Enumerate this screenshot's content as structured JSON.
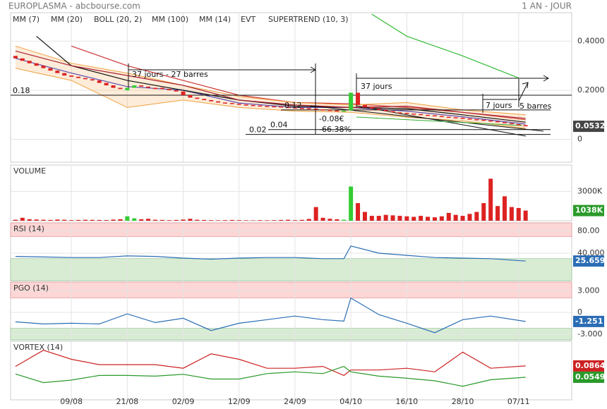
{
  "header": {
    "title": "EUROPLASMA - abcbourse.com",
    "period": "1 AN - JOUR"
  },
  "chart_data": [
    {
      "type": "candlestick",
      "xlim": [
        -0.7,
        79.6
      ],
      "xticks": [
        {
          "value": 8,
          "label": "09/08"
        },
        {
          "value": 16,
          "label": "21/08"
        },
        {
          "value": 24,
          "label": "02/09"
        },
        {
          "value": 32,
          "label": "12/09"
        },
        {
          "value": 40,
          "label": "24/09"
        },
        {
          "value": 48,
          "label": "04/10"
        },
        {
          "value": 56,
          "label": "16/10"
        },
        {
          "value": 64,
          "label": "28/10"
        },
        {
          "value": 72,
          "label": "07/11"
        }
      ],
      "ylim": [
        -0.093,
        0.516
      ],
      "yticks": [
        {
          "value": 0.4,
          "label": "0.4000"
        },
        {
          "value": 0.2,
          "label": "0.2000"
        },
        0
      ],
      "grid": true,
      "up_color": "#33cc33",
      "down_color": "#dd2222",
      "open": [
        0.34,
        0.33,
        0.32,
        0.31,
        0.3,
        0.29,
        0.28,
        0.27,
        0.26,
        0.255,
        0.25,
        0.245,
        0.24,
        0.23,
        0.22,
        0.21,
        0.2,
        0.21,
        0.22,
        0.215,
        0.21,
        0.21,
        0.205,
        0.2,
        0.195,
        0.18,
        0.17,
        0.165,
        0.16,
        0.155,
        0.15,
        0.148,
        0.145,
        0.142,
        0.14,
        0.138,
        0.136,
        0.135,
        0.134,
        0.132,
        0.13,
        0.128,
        0.127,
        0.125,
        0.122,
        0.12,
        0.118,
        0.116,
        0.118,
        0.19,
        0.14,
        0.13,
        0.125,
        0.12,
        0.115,
        0.11,
        0.108,
        0.105,
        0.103,
        0.1,
        0.098,
        0.095,
        0.092,
        0.09,
        0.088,
        0.085,
        0.082,
        0.08,
        0.077,
        0.074,
        0.07,
        0.066,
        0.062,
        0.058
      ],
      "close": [
        0.33,
        0.32,
        0.31,
        0.3,
        0.29,
        0.28,
        0.27,
        0.26,
        0.255,
        0.25,
        0.245,
        0.24,
        0.23,
        0.22,
        0.21,
        0.205,
        0.21,
        0.22,
        0.215,
        0.21,
        0.205,
        0.205,
        0.2,
        0.195,
        0.18,
        0.17,
        0.165,
        0.16,
        0.155,
        0.15,
        0.148,
        0.145,
        0.142,
        0.14,
        0.138,
        0.136,
        0.135,
        0.134,
        0.132,
        0.13,
        0.128,
        0.127,
        0.125,
        0.122,
        0.12,
        0.118,
        0.116,
        0.117,
        0.19,
        0.14,
        0.13,
        0.125,
        0.12,
        0.115,
        0.11,
        0.108,
        0.105,
        0.103,
        0.1,
        0.098,
        0.095,
        0.092,
        0.09,
        0.088,
        0.085,
        0.082,
        0.08,
        0.077,
        0.074,
        0.07,
        0.066,
        0.062,
        0.058,
        0.0532
      ],
      "series": [
        {
          "name": "MM (7)",
          "color": "#3333cc",
          "x": [
            0,
            8,
            16,
            24,
            32,
            40,
            48,
            56,
            64,
            73
          ],
          "values": [
            0.33,
            0.27,
            0.215,
            0.2,
            0.148,
            0.13,
            0.13,
            0.115,
            0.092,
            0.062
          ]
        },
        {
          "name": "MM (20)",
          "color": "#cc3333",
          "x": [
            8,
            16,
            24,
            32,
            40,
            48,
            56,
            64,
            73
          ],
          "values": [
            0.38,
            0.3,
            0.24,
            0.18,
            0.15,
            0.145,
            0.13,
            0.11,
            0.08
          ]
        },
        {
          "name": "BOLL (20, 2)",
          "color": "#f0a040",
          "x": [
            0,
            8,
            16,
            24,
            32,
            40,
            48,
            56,
            64,
            73
          ],
          "upper": [
            0.38,
            0.31,
            0.27,
            0.22,
            0.175,
            0.15,
            0.14,
            0.15,
            0.12,
            0.1
          ],
          "lower": [
            0.29,
            0.24,
            0.13,
            0.16,
            0.13,
            0.115,
            0.11,
            0.09,
            0.075,
            0.045
          ]
        },
        {
          "name": "MM (100)",
          "color": "#33bb33",
          "x": [
            51,
            56,
            64,
            72
          ],
          "values": [
            0.51,
            0.42,
            0.34,
            0.25
          ]
        },
        {
          "name": "MM (14)",
          "color": "#111111",
          "x": [
            3,
            8,
            16,
            24,
            32,
            40,
            48,
            56,
            64,
            73
          ],
          "values": [
            0.42,
            0.3,
            0.24,
            0.2,
            0.16,
            0.135,
            0.13,
            0.125,
            0.1,
            0.07
          ]
        },
        {
          "name": "EVT",
          "color": "#111111"
        },
        {
          "name": "SUPERTREND (10, 3)",
          "color": "#aa2233",
          "x": [
            0,
            8,
            16,
            24,
            32,
            40,
            48,
            56,
            64,
            73
          ],
          "values": [
            0.36,
            0.3,
            0.26,
            0.22,
            0.16,
            0.14,
            0.13,
            0.135,
            0.11,
            0.085
          ]
        }
      ],
      "levels": [
        0.18,
        0.12,
        0.04,
        0.02
      ],
      "notes": [
        "37 jours - 27 barres",
        "37 jours",
        "7 jours",
        "5 barres",
        "-0.08€",
        "-66.38%"
      ]
    },
    {
      "type": "bar",
      "title": "VOLUME",
      "ylim": [
        0,
        5700000
      ],
      "yticks": [
        {
          "value": 3000000,
          "label": "3000K"
        }
      ],
      "values": [
        100000,
        300000,
        150000,
        120000,
        100000,
        80000,
        120000,
        100000,
        60000,
        80000,
        100000,
        90000,
        80000,
        70000,
        120000,
        150000,
        450000,
        250000,
        150000,
        200000,
        100000,
        80000,
        60000,
        80000,
        120000,
        200000,
        100000,
        80000,
        60000,
        50000,
        60000,
        80000,
        60000,
        50000,
        40000,
        60000,
        50000,
        60000,
        80000,
        100000,
        60000,
        90000,
        180000,
        1400000,
        300000,
        200000,
        150000,
        100000,
        3500000,
        1800000,
        900000,
        500000,
        500000,
        600000,
        550000,
        500000,
        450000,
        400000,
        500000,
        400000,
        350000,
        450000,
        800000,
        600000,
        500000,
        700000,
        900000,
        1800000,
        4300000,
        1500000,
        2500000,
        1400000,
        1300000,
        1038000
      ],
      "last_label": "1038K"
    },
    {
      "type": "line",
      "title": "RSI (14)",
      "color": "#2a6db5",
      "ylim": [
        -10,
        95
      ],
      "yticks": [
        {
          "value": 80,
          "label": "80.00"
        },
        {
          "value": 40,
          "label": "40.000"
        }
      ],
      "zones": [
        {
          "from": 70,
          "to": 95,
          "color": "#fdd6d6"
        },
        {
          "from": -10,
          "to": 30,
          "color": "#d8ecd4"
        }
      ],
      "x": [
        0,
        4,
        8,
        12,
        16,
        20,
        24,
        28,
        32,
        36,
        40,
        44,
        47,
        48,
        52,
        56,
        60,
        64,
        68,
        73
      ],
      "values": [
        34,
        33,
        32,
        32,
        35,
        34,
        31,
        29,
        31,
        32,
        32,
        30,
        30,
        53,
        40,
        36,
        32,
        31,
        30,
        25.659
      ]
    },
    {
      "type": "line",
      "title": "PGO (14)",
      "color": "#2a6db5",
      "ylim": [
        -3.8,
        4.2
      ],
      "yticks": [
        {
          "value": 3,
          "label": "3.000"
        },
        0,
        {
          "value": -3,
          "label": "-3.000"
        }
      ],
      "zones": [
        {
          "from": 2,
          "to": 4.2,
          "color": "#fdd6d6"
        },
        {
          "from": -3.8,
          "to": -2.2,
          "color": "#d8ecd4"
        }
      ],
      "x": [
        0,
        4,
        8,
        12,
        16,
        20,
        24,
        28,
        32,
        36,
        40,
        44,
        47,
        48,
        52,
        56,
        60,
        64,
        68,
        73
      ],
      "values": [
        -1.3,
        -1.6,
        -1.5,
        -1.6,
        -0.2,
        -1.4,
        -0.8,
        -2.5,
        -1.5,
        -1.0,
        -0.5,
        -1.0,
        -1.2,
        2.0,
        -0.3,
        -1.5,
        -2.8,
        -1.0,
        -0.5,
        -1.251
      ]
    },
    {
      "type": "line",
      "title": "VORTEX (14)",
      "ylim": [
        -0.008,
        0.155
      ],
      "yticks": [],
      "x": [
        0,
        4,
        8,
        12,
        16,
        20,
        24,
        28,
        32,
        36,
        40,
        44,
        47,
        48,
        52,
        56,
        60,
        64,
        68,
        73
      ],
      "series": [
        {
          "color": "#cc2222",
          "values": [
            0.085,
            0.13,
            0.105,
            0.09,
            0.09,
            0.09,
            0.08,
            0.12,
            0.105,
            0.08,
            0.08,
            0.085,
            0.06,
            0.075,
            0.075,
            0.08,
            0.07,
            0.125,
            0.08,
            0.0864
          ]
        },
        {
          "color": "#2a9a2a",
          "values": [
            0.064,
            0.04,
            0.047,
            0.06,
            0.06,
            0.058,
            0.063,
            0.05,
            0.05,
            0.065,
            0.07,
            0.065,
            0.085,
            0.07,
            0.058,
            0.052,
            0.045,
            0.03,
            0.048,
            0.0549
          ]
        }
      ]
    }
  ]
}
